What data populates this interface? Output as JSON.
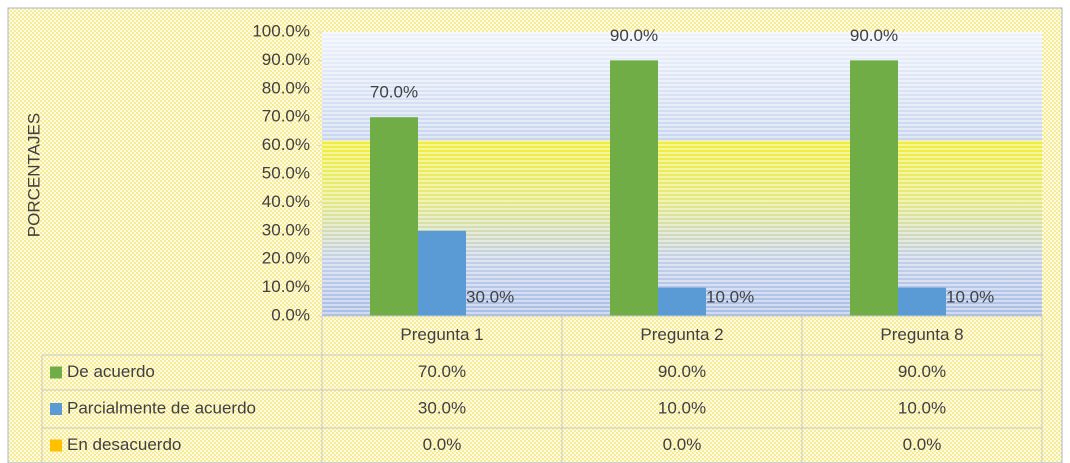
{
  "chart_data": {
    "type": "bar",
    "y_label": "PORCENTAJES",
    "categories": [
      "Pregunta 1",
      "Pregunta 2",
      "Pregunta 8"
    ],
    "series": [
      {
        "name": "De acuerdo",
        "color": "#70ad47",
        "values": [
          70,
          90,
          90
        ],
        "value_labels": [
          "70.0%",
          "90.0%",
          "90.0%"
        ]
      },
      {
        "name": "Parcialmente de acuerdo",
        "color": "#5b9bd5",
        "values": [
          30,
          10,
          10
        ],
        "value_labels": [
          "30.0%",
          "10.0%",
          "10.0%"
        ]
      },
      {
        "name": "En desacuerdo",
        "color": "#ffc000",
        "values": [
          0,
          0,
          0
        ],
        "value_labels": [
          "0.0%",
          "0.0%",
          "0.0%"
        ]
      }
    ],
    "ylim": [
      0,
      100
    ],
    "yticks": [
      {
        "value": 0,
        "label": "0.0%"
      },
      {
        "value": 10,
        "label": "10.0%"
      },
      {
        "value": 20,
        "label": "20.0%"
      },
      {
        "value": 30,
        "label": "30.0%"
      },
      {
        "value": 40,
        "label": "40.0%"
      },
      {
        "value": 50,
        "label": "50.0%"
      },
      {
        "value": 60,
        "label": "60.0%"
      },
      {
        "value": 70,
        "label": "70.0%"
      },
      {
        "value": 80,
        "label": "80.0%"
      },
      {
        "value": 90,
        "label": "90.0%"
      },
      {
        "value": 100,
        "label": "100.0%"
      }
    ]
  }
}
